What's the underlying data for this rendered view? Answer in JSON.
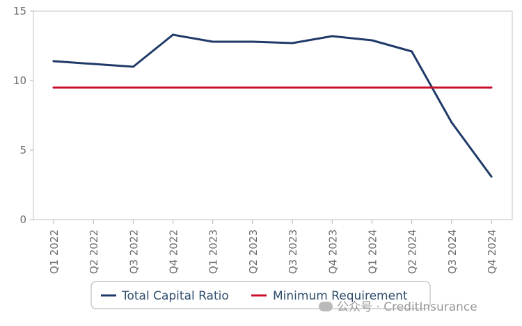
{
  "chart_data": {
    "type": "line",
    "title": "",
    "xlabel": "",
    "ylabel": "",
    "categories": [
      "Q1 2022",
      "Q2 2022",
      "Q3 2022",
      "Q4 2022",
      "Q1 2023",
      "Q2 2023",
      "Q3 2023",
      "Q4 2023",
      "Q1 2024",
      "Q2 2024",
      "Q3 2024",
      "Q4 2024"
    ],
    "ylim": [
      0,
      15
    ],
    "yticks": [
      0,
      5,
      10,
      15
    ],
    "grid": false,
    "legend_position": "bottom",
    "series": [
      {
        "name": "Total Capital Ratio",
        "color": "#1f3a68",
        "values": [
          11.4,
          11.2,
          11.0,
          13.3,
          12.8,
          12.8,
          12.7,
          13.2,
          12.9,
          12.1,
          7.0,
          3.1
        ]
      },
      {
        "name": "Minimum Requirement",
        "color": "#c8102e",
        "values": [
          9.5,
          9.5,
          9.5,
          9.5,
          9.5,
          9.5,
          9.5,
          9.5,
          9.5,
          9.5,
          9.5,
          9.5
        ]
      }
    ]
  },
  "watermark": {
    "text": "公众号 · CreditInsurance",
    "icon": "wechat-icon"
  }
}
